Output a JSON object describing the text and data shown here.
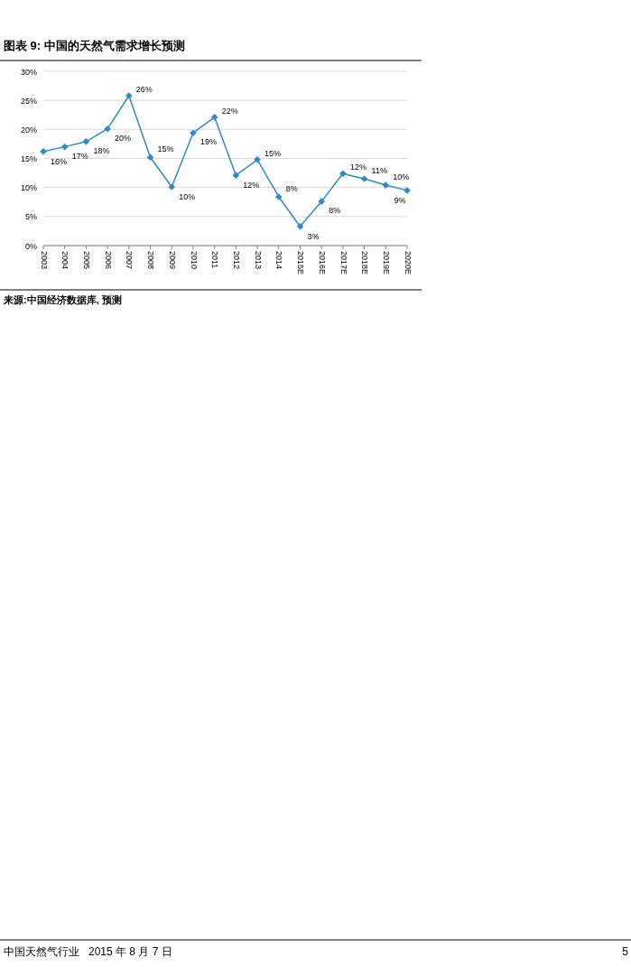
{
  "chart_data": {
    "type": "line",
    "title": "图表 9: 中国的天然气需求增长预测",
    "categories": [
      "2003",
      "2004",
      "2005",
      "2006",
      "2007",
      "2008",
      "2009",
      "2010",
      "2011",
      "2012",
      "2013",
      "2014",
      "2015E",
      "2016E",
      "2017E",
      "2018E",
      "2019E",
      "2020E"
    ],
    "series": [
      {
        "color": "#2f8ac6",
        "values": [
          16.2,
          17.0,
          17.9,
          20.1,
          25.8,
          15.2,
          10.1,
          19.4,
          22.1,
          12.1,
          14.8,
          8.4,
          3.3,
          7.6,
          12.4,
          11.5,
          10.4,
          9.5
        ],
        "value_labels": [
          "16%",
          "17%",
          "18%",
          "20%",
          "26%",
          "15%",
          "10%",
          "19%",
          "22%",
          "12%",
          "15%",
          "8%",
          "3%",
          "8%",
          "12%",
          "11%",
          "10%",
          "9%"
        ]
      }
    ],
    "ylim": [
      0,
      30
    ],
    "yticks": [
      {
        "value": 0,
        "label": "0%"
      },
      {
        "value": 5,
        "label": "5%"
      },
      {
        "value": 10,
        "label": "10%"
      },
      {
        "value": 15,
        "label": "15%"
      },
      {
        "value": 20,
        "label": "20%"
      },
      {
        "value": 25,
        "label": "25%"
      },
      {
        "value": 30,
        "label": "30%"
      }
    ],
    "grid": "y",
    "marker": "diamond",
    "line_style": "solid",
    "annotations": [
      "来源:中国经济数据库, 预测",
      "中国天然气行业   2015 年 8 月 7 日",
      "5"
    ]
  }
}
